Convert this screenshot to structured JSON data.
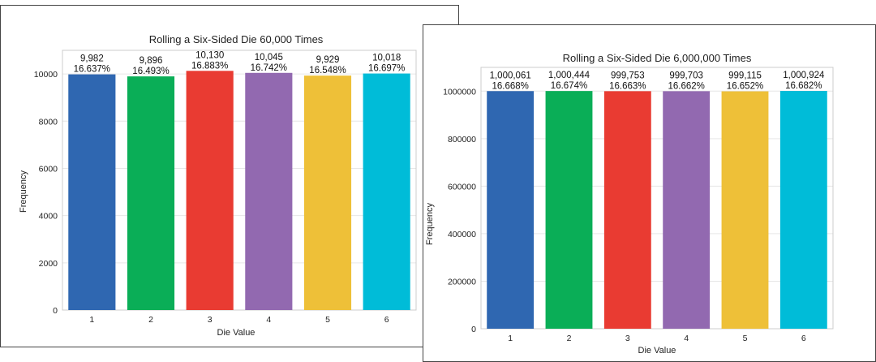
{
  "chart_data": [
    {
      "type": "bar",
      "title": "Rolling a Six-Sided Die 60,000 Times",
      "xlabel": "Die Value",
      "ylabel": "Frequency",
      "categories": [
        "1",
        "2",
        "3",
        "4",
        "5",
        "6"
      ],
      "values": [
        9982,
        9896,
        10130,
        10045,
        9929,
        10018
      ],
      "count_labels": [
        "9,982",
        "9,896",
        "10,130",
        "10,045",
        "9,929",
        "10,018"
      ],
      "percent_labels": [
        "16.637%",
        "16.493%",
        "16.883%",
        "16.742%",
        "16.548%",
        "16.697%"
      ],
      "colors": [
        "#2f67b1",
        "#0aae57",
        "#e93b32",
        "#9269b0",
        "#eec038",
        "#00bcd8"
      ],
      "ylim": [
        0,
        11000
      ],
      "yticks": [
        0,
        2000,
        4000,
        6000,
        8000,
        10000
      ],
      "ytick_labels": [
        "0",
        "2000",
        "4000",
        "6000",
        "8000",
        "10000"
      ],
      "grid": true,
      "legend": "none"
    },
    {
      "type": "bar",
      "title": "Rolling a Six-Sided Die 6,000,000 Times",
      "xlabel": "Die Value",
      "ylabel": "Frequency",
      "categories": [
        "1",
        "2",
        "3",
        "4",
        "5",
        "6"
      ],
      "values": [
        1000061,
        1000444,
        999753,
        999703,
        999115,
        1000924
      ],
      "count_labels": [
        "1,000,061",
        "1,000,444",
        "999,753",
        "999,703",
        "999,115",
        "1,000,924"
      ],
      "percent_labels": [
        "16.668%",
        "16.674%",
        "16.663%",
        "16.662%",
        "16.652%",
        "16.682%"
      ],
      "colors": [
        "#2f67b1",
        "#0aae57",
        "#e93b32",
        "#9269b0",
        "#eec038",
        "#00bcd8"
      ],
      "ylim": [
        0,
        1100000
      ],
      "yticks": [
        0,
        200000,
        400000,
        600000,
        800000,
        1000000
      ],
      "ytick_labels": [
        "0",
        "200000",
        "400000",
        "600000",
        "800000",
        "1000000"
      ],
      "grid": true,
      "legend": "none"
    }
  ]
}
